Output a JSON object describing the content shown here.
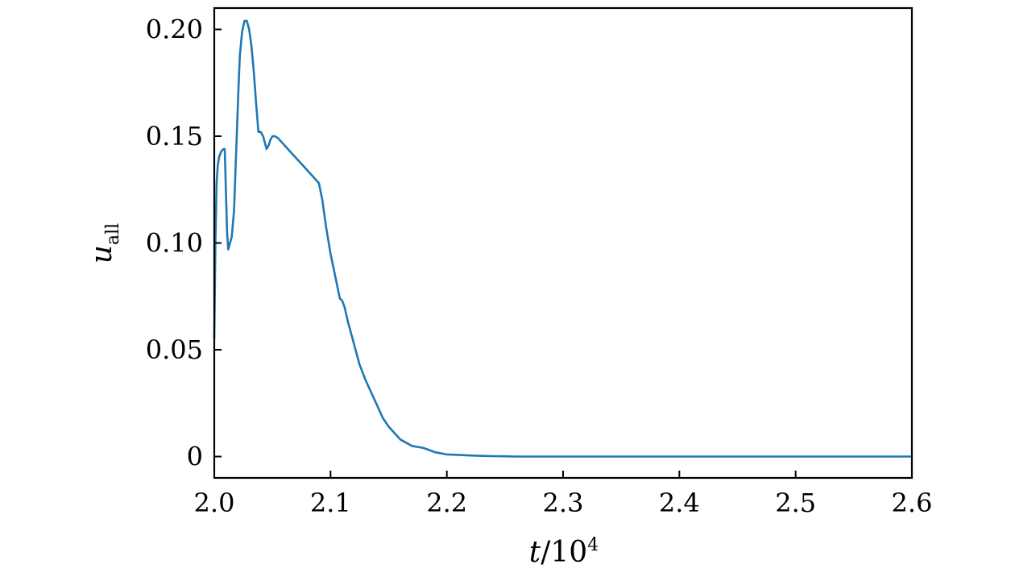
{
  "chart_data": {
    "type": "line",
    "title": "",
    "xlabel": {
      "var": "t",
      "sep": "/10",
      "exp": "4"
    },
    "ylabel": {
      "var": "u",
      "sub": "all"
    },
    "xlim": [
      2.0,
      2.6
    ],
    "ylim": [
      -0.01,
      0.21
    ],
    "x_ticks": [
      2.0,
      2.1,
      2.2,
      2.3,
      2.4,
      2.5,
      2.6
    ],
    "x_tick_labels": [
      "2.0",
      "2.1",
      "2.2",
      "2.3",
      "2.4",
      "2.5",
      "2.6"
    ],
    "y_ticks": [
      0,
      0.05,
      0.1,
      0.15,
      0.2
    ],
    "y_tick_labels": [
      "0",
      "0.05",
      "0.10",
      "0.15",
      "0.20"
    ],
    "grid": false,
    "legend": "none",
    "line_color": "#1f77b4",
    "series": [
      {
        "x": [
          2.0,
          2.001,
          2.002,
          2.003,
          2.004,
          2.006,
          2.008,
          2.009,
          2.01,
          2.011,
          2.012,
          2.013,
          2.015,
          2.017,
          2.019,
          2.021,
          2.022,
          2.024,
          2.026,
          2.028,
          2.03,
          2.032,
          2.034,
          2.036,
          2.038,
          2.04,
          2.042,
          2.044,
          2.045,
          2.047,
          2.048,
          2.05,
          2.052,
          2.055,
          2.06,
          2.065,
          2.07,
          2.075,
          2.08,
          2.085,
          2.09,
          2.093,
          2.096,
          2.1,
          2.105,
          2.108,
          2.11,
          2.112,
          2.115,
          2.12,
          2.125,
          2.13,
          2.135,
          2.14,
          2.145,
          2.15,
          2.155,
          2.16,
          2.17,
          2.18,
          2.185,
          2.19,
          2.2,
          2.21,
          2.22,
          2.23,
          2.24,
          2.25,
          2.26,
          2.28,
          2.3,
          2.32,
          2.35,
          2.4,
          2.45,
          2.5,
          2.55,
          2.6
        ],
        "y": [
          0.055,
          0.1,
          0.128,
          0.136,
          0.14,
          0.143,
          0.144,
          0.144,
          0.125,
          0.105,
          0.097,
          0.099,
          0.103,
          0.115,
          0.145,
          0.175,
          0.188,
          0.199,
          0.204,
          0.204,
          0.2,
          0.192,
          0.18,
          0.165,
          0.152,
          0.152,
          0.15,
          0.146,
          0.144,
          0.146,
          0.148,
          0.15,
          0.15,
          0.149,
          0.146,
          0.143,
          0.14,
          0.137,
          0.134,
          0.131,
          0.128,
          0.12,
          0.108,
          0.095,
          0.082,
          0.074,
          0.073,
          0.07,
          0.063,
          0.053,
          0.043,
          0.036,
          0.03,
          0.024,
          0.018,
          0.014,
          0.011,
          0.008,
          0.005,
          0.004,
          0.003,
          0.002,
          0.001,
          0.0008,
          0.0005,
          0.0003,
          0.0002,
          0.0001,
          0.0,
          0.0,
          0.0,
          0.0,
          0.0,
          0.0,
          0.0,
          0.0,
          0.0,
          0.0
        ]
      }
    ]
  }
}
